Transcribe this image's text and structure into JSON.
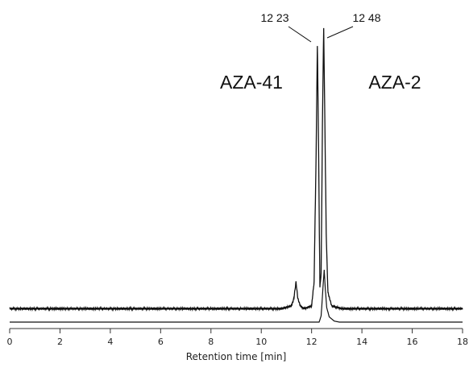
{
  "chart_data": {
    "type": "line",
    "xlabel": "Retention time [min]",
    "xlim": [
      0,
      18
    ],
    "x_ticks": [
      "0",
      "2",
      "4",
      "6",
      "8",
      "10",
      "12",
      "14",
      "16",
      "18"
    ],
    "grid": false,
    "peak_labels": [
      {
        "text": "AZA-41",
        "x": 12.23
      },
      {
        "text": "AZA-2",
        "x": 12.48
      }
    ],
    "retention_time_labels": [
      {
        "text": "12 23",
        "x": 12.23
      },
      {
        "text": "12 48",
        "x": 12.48
      }
    ],
    "series": [
      {
        "x": [
          0,
          10.8,
          11.2,
          11.3,
          11.38,
          11.45,
          11.55,
          11.7,
          12.0,
          12.1,
          12.18,
          12.23,
          12.28,
          12.33,
          12.38,
          12.43,
          12.48,
          12.53,
          12.58,
          12.65,
          12.8,
          13.2,
          18
        ],
        "values": [
          0.02,
          0.02,
          0.03,
          0.06,
          0.12,
          0.06,
          0.03,
          0.02,
          0.03,
          0.12,
          0.6,
          1.0,
          0.6,
          0.1,
          0.15,
          0.7,
          1.06,
          0.7,
          0.3,
          0.08,
          0.03,
          0.02,
          0.02
        ]
      },
      {
        "x": [
          0,
          12.3,
          12.38,
          12.45,
          12.5,
          12.55,
          12.6,
          12.7,
          12.9,
          13.1,
          18
        ],
        "values": [
          0.0,
          0.0,
          0.06,
          0.32,
          0.5,
          0.3,
          0.14,
          0.05,
          0.01,
          0.0,
          0.0
        ]
      }
    ]
  }
}
